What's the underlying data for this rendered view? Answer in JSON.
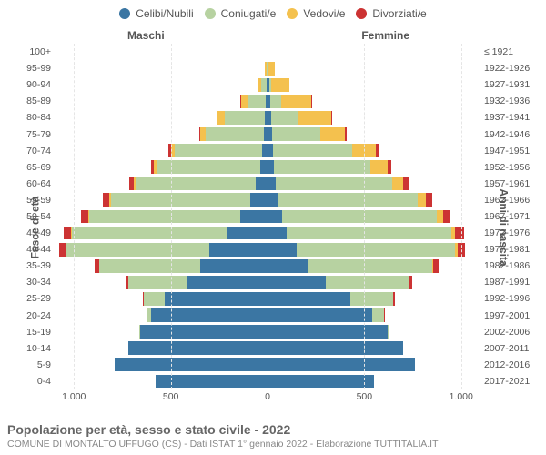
{
  "chart": {
    "type": "population-pyramid",
    "legend": [
      {
        "label": "Celibi/Nubili",
        "color": "#3b76a3"
      },
      {
        "label": "Coniugati/e",
        "color": "#b7d2a1"
      },
      {
        "label": "Vedovi/e",
        "color": "#f4c14e"
      },
      {
        "label": "Divorziati/e",
        "color": "#cc3333"
      }
    ],
    "male_label": "Maschi",
    "female_label": "Femmine",
    "y_axis_label_left": "Fasce di età",
    "y_axis_label_right": "Anni di nascita",
    "x_ticks": [
      1000,
      500,
      0,
      500,
      1000
    ],
    "x_tick_labels": [
      "1.000",
      "500",
      "0",
      "500",
      "1.000"
    ],
    "x_max": 1100,
    "background_color": "#ffffff",
    "grid_color": "#e5e5e5",
    "centerline_color": "#888888",
    "label_fontsize": 11,
    "tick_fontsize": 10.5,
    "title": "Popolazione per età, sesso e stato civile - 2022",
    "subtitle": "COMUNE DI MONTALTO UFFUGO (CS) - Dati ISTAT 1° gennaio 2022 - Elaborazione TUTTITALIA.IT",
    "colors": {
      "single": "#3b76a3",
      "married": "#b7d2a1",
      "widowed": "#f4c14e",
      "divorced": "#cc3333"
    },
    "rows": [
      {
        "age": "100+",
        "birth": "≤ 1921",
        "m": {
          "single": 0,
          "married": 0,
          "widowed": 2,
          "divorced": 0
        },
        "f": {
          "single": 0,
          "married": 0,
          "widowed": 5,
          "divorced": 0
        }
      },
      {
        "age": "95-99",
        "birth": "1922-1926",
        "m": {
          "single": 2,
          "married": 4,
          "widowed": 8,
          "divorced": 0
        },
        "f": {
          "single": 4,
          "married": 2,
          "widowed": 30,
          "divorced": 0
        }
      },
      {
        "age": "90-94",
        "birth": "1927-1931",
        "m": {
          "single": 4,
          "married": 30,
          "widowed": 20,
          "divorced": 0
        },
        "f": {
          "single": 8,
          "married": 12,
          "widowed": 95,
          "divorced": 0
        }
      },
      {
        "age": "85-89",
        "birth": "1932-1936",
        "m": {
          "single": 8,
          "married": 95,
          "widowed": 35,
          "divorced": 2
        },
        "f": {
          "single": 14,
          "married": 55,
          "widowed": 155,
          "divorced": 2
        }
      },
      {
        "age": "80-84",
        "birth": "1937-1941",
        "m": {
          "single": 12,
          "married": 210,
          "widowed": 38,
          "divorced": 4
        },
        "f": {
          "single": 20,
          "married": 140,
          "widowed": 170,
          "divorced": 6
        }
      },
      {
        "age": "75-79",
        "birth": "1942-1946",
        "m": {
          "single": 18,
          "married": 300,
          "widowed": 28,
          "divorced": 6
        },
        "f": {
          "single": 22,
          "married": 250,
          "widowed": 130,
          "divorced": 8
        }
      },
      {
        "age": "70-74",
        "birth": "1947-1951",
        "m": {
          "single": 28,
          "married": 450,
          "widowed": 22,
          "divorced": 12
        },
        "f": {
          "single": 28,
          "married": 410,
          "widowed": 120,
          "divorced": 14
        }
      },
      {
        "age": "65-69",
        "birth": "1952-1956",
        "m": {
          "single": 40,
          "married": 530,
          "widowed": 16,
          "divorced": 16
        },
        "f": {
          "single": 32,
          "married": 500,
          "widowed": 90,
          "divorced": 18
        }
      },
      {
        "age": "60-64",
        "birth": "1957-1961",
        "m": {
          "single": 60,
          "married": 620,
          "widowed": 12,
          "divorced": 22
        },
        "f": {
          "single": 42,
          "married": 600,
          "widowed": 60,
          "divorced": 26
        }
      },
      {
        "age": "55-59",
        "birth": "1962-1966",
        "m": {
          "single": 90,
          "married": 720,
          "widowed": 10,
          "divorced": 30
        },
        "f": {
          "single": 55,
          "married": 720,
          "widowed": 45,
          "divorced": 32
        }
      },
      {
        "age": "50-54",
        "birth": "1967-1971",
        "m": {
          "single": 140,
          "married": 780,
          "widowed": 8,
          "divorced": 36
        },
        "f": {
          "single": 75,
          "married": 800,
          "widowed": 30,
          "divorced": 40
        }
      },
      {
        "age": "45-49",
        "birth": "1972-1976",
        "m": {
          "single": 210,
          "married": 800,
          "widowed": 6,
          "divorced": 38
        },
        "f": {
          "single": 100,
          "married": 850,
          "widowed": 20,
          "divorced": 44
        }
      },
      {
        "age": "40-44",
        "birth": "1977-1981",
        "m": {
          "single": 300,
          "married": 740,
          "widowed": 4,
          "divorced": 32
        },
        "f": {
          "single": 150,
          "married": 820,
          "widowed": 12,
          "divorced": 40
        }
      },
      {
        "age": "35-39",
        "birth": "1982-1986",
        "m": {
          "single": 350,
          "married": 520,
          "widowed": 2,
          "divorced": 20
        },
        "f": {
          "single": 210,
          "married": 640,
          "widowed": 6,
          "divorced": 26
        }
      },
      {
        "age": "30-34",
        "birth": "1987-1991",
        "m": {
          "single": 420,
          "married": 300,
          "widowed": 0,
          "divorced": 10
        },
        "f": {
          "single": 300,
          "married": 430,
          "widowed": 2,
          "divorced": 14
        }
      },
      {
        "age": "25-29",
        "birth": "1992-1996",
        "m": {
          "single": 530,
          "married": 110,
          "widowed": 0,
          "divorced": 4
        },
        "f": {
          "single": 430,
          "married": 220,
          "widowed": 0,
          "divorced": 6
        }
      },
      {
        "age": "20-24",
        "birth": "1997-2001",
        "m": {
          "single": 600,
          "married": 22,
          "widowed": 0,
          "divorced": 0
        },
        "f": {
          "single": 540,
          "married": 60,
          "widowed": 0,
          "divorced": 2
        }
      },
      {
        "age": "15-19",
        "birth": "2002-2006",
        "m": {
          "single": 660,
          "married": 2,
          "widowed": 0,
          "divorced": 0
        },
        "f": {
          "single": 620,
          "married": 8,
          "widowed": 0,
          "divorced": 0
        }
      },
      {
        "age": "10-14",
        "birth": "2007-2011",
        "m": {
          "single": 720,
          "married": 0,
          "widowed": 0,
          "divorced": 0
        },
        "f": {
          "single": 700,
          "married": 0,
          "widowed": 0,
          "divorced": 0
        }
      },
      {
        "age": "5-9",
        "birth": "2012-2016",
        "m": {
          "single": 790,
          "married": 0,
          "widowed": 0,
          "divorced": 0
        },
        "f": {
          "single": 760,
          "married": 0,
          "widowed": 0,
          "divorced": 0
        }
      },
      {
        "age": "0-4",
        "birth": "2017-2021",
        "m": {
          "single": 580,
          "married": 0,
          "widowed": 0,
          "divorced": 0
        },
        "f": {
          "single": 550,
          "married": 0,
          "widowed": 0,
          "divorced": 0
        }
      }
    ]
  }
}
